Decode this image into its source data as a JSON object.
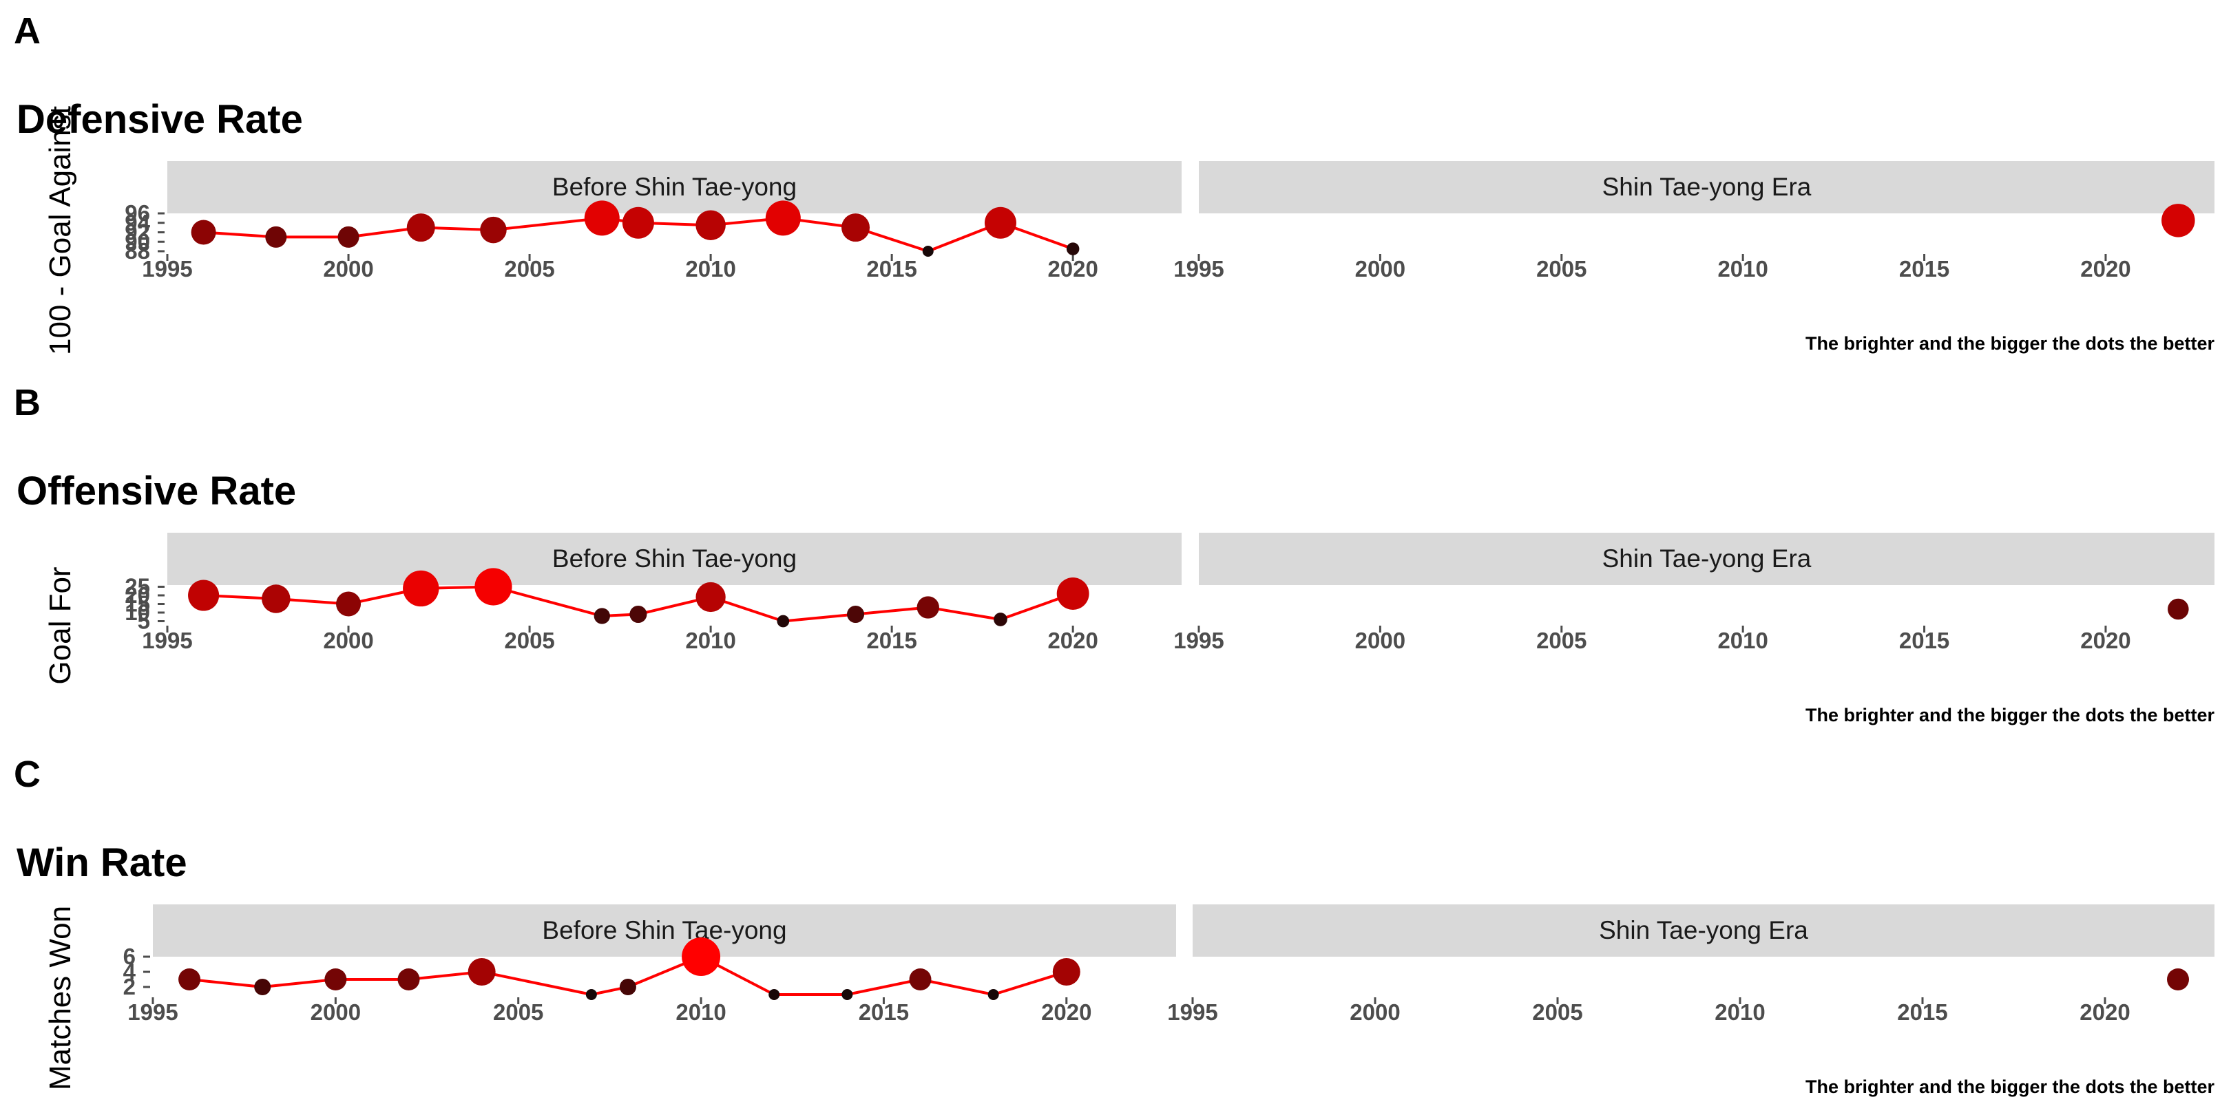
{
  "chart_data": [
    {
      "type": "line",
      "tag": "A",
      "title": "Defensive Rate",
      "ylabel": "100 - Goal Against",
      "caption": "The brighter and the bigger the dots the better",
      "facets": [
        "Before Shin Tae-yong",
        "Shin Tae-yong Era"
      ],
      "xlim": [
        1995,
        2023
      ],
      "x_ticks": [
        1995,
        2000,
        2005,
        2010,
        2015,
        2020
      ],
      "ylim": [
        88,
        96
      ],
      "y_ticks": [
        88,
        90,
        92,
        94,
        96
      ],
      "y_tick_labels": [
        "88",
        "90",
        "92",
        "94",
        "96"
      ],
      "series": [
        {
          "facet": "Before Shin Tae-yong",
          "x": [
            1996,
            1998,
            2000,
            2002,
            2004,
            2007,
            2008,
            2010,
            2012,
            2014,
            2016,
            2018,
            2020
          ],
          "y": [
            92,
            91,
            91,
            93,
            92.5,
            95,
            94,
            93.5,
            95,
            93,
            88,
            94,
            88.5
          ]
        },
        {
          "facet": "Shin Tae-yong Era",
          "x": [
            2022
          ],
          "y": [
            94.5
          ]
        }
      ],
      "line_color": "#ff0000"
    },
    {
      "type": "line",
      "tag": "B",
      "title": "Offensive Rate",
      "ylabel": "Goal For",
      "caption": "The brighter and the bigger the dots the better",
      "facets": [
        "Before Shin Tae-yong",
        "Shin Tae-yong Era"
      ],
      "xlim": [
        1995,
        2023
      ],
      "x_ticks": [
        1995,
        2000,
        2005,
        2010,
        2015,
        2020
      ],
      "ylim": [
        4,
        26
      ],
      "y_ticks": [
        5,
        10,
        15,
        20,
        25
      ],
      "y_tick_labels": [
        "5",
        "10",
        "15",
        "20",
        "25"
      ],
      "series": [
        {
          "facet": "Before Shin Tae-yong",
          "x": [
            1996,
            1998,
            2000,
            2002,
            2004,
            2007,
            2008,
            2010,
            2012,
            2014,
            2016,
            2018,
            2020
          ],
          "y": [
            20,
            18,
            15,
            24,
            25,
            8,
            9,
            19,
            5,
            9,
            13,
            6,
            21
          ]
        },
        {
          "facet": "Shin Tae-yong Era",
          "x": [
            2022
          ],
          "y": [
            12
          ]
        }
      ],
      "line_color": "#ff0000"
    },
    {
      "type": "line",
      "tag": "C",
      "title": "Win Rate",
      "ylabel": "Matches Won",
      "caption": "The brighter and the bigger the dots the better",
      "facets": [
        "Before Shin Tae-yong",
        "Shin Tae-yong Era"
      ],
      "xlim": [
        1995,
        2023
      ],
      "x_ticks": [
        1995,
        2000,
        2005,
        2010,
        2015,
        2020
      ],
      "ylim": [
        1,
        6
      ],
      "y_ticks": [
        2,
        4,
        6
      ],
      "y_tick_labels": [
        "2",
        "4",
        "6"
      ],
      "series": [
        {
          "facet": "Before Shin Tae-yong",
          "x": [
            1996,
            1998,
            2000,
            2002,
            2004,
            2007,
            2008,
            2010,
            2012,
            2014,
            2016,
            2018,
            2020
          ],
          "y": [
            3,
            2,
            3,
            3,
            4,
            1,
            2,
            6,
            1,
            1,
            3,
            1,
            4
          ]
        },
        {
          "facet": "Shin Tae-yong Era",
          "x": [
            2022
          ],
          "y": [
            3
          ]
        }
      ],
      "line_color": "#ff0000"
    }
  ]
}
